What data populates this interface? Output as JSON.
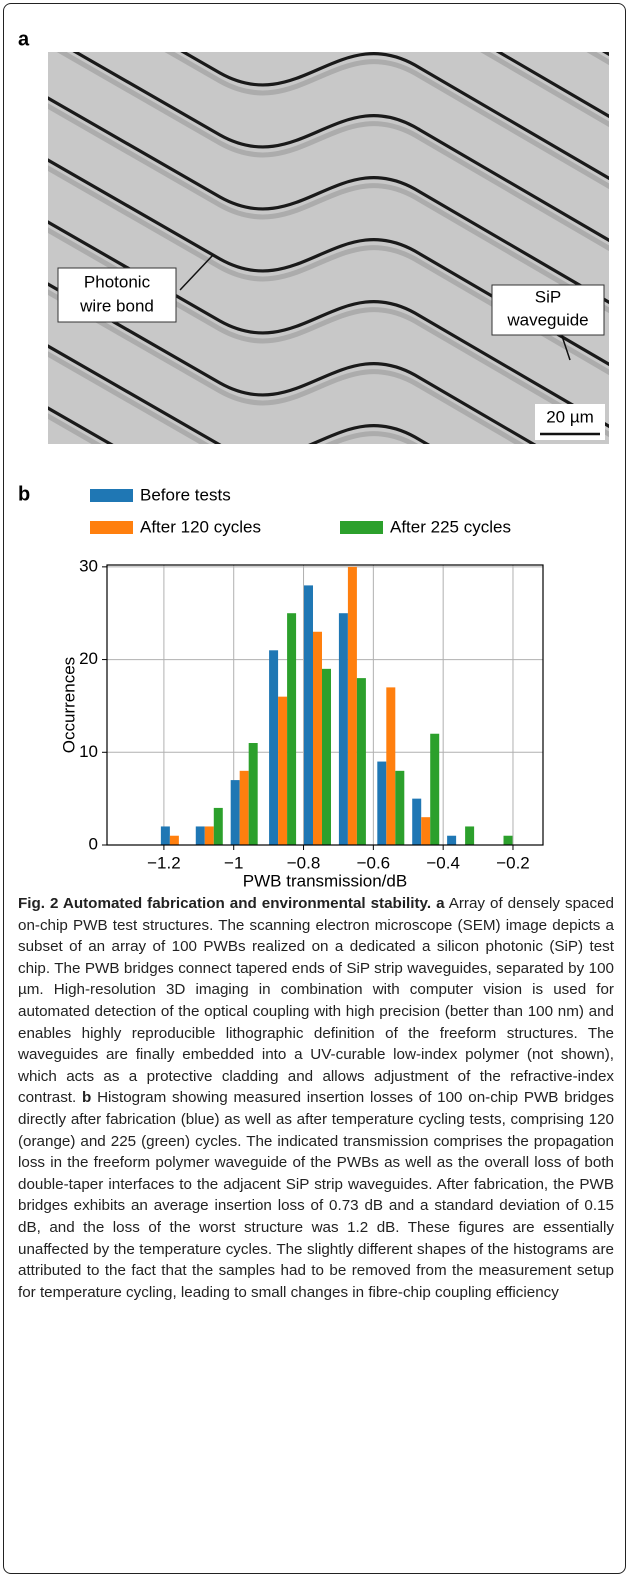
{
  "panel_a": {
    "label": "a",
    "annotations": [
      {
        "lines": [
          "Photonic",
          "wire bond"
        ]
      },
      {
        "lines": [
          "SiP",
          "waveguide"
        ]
      }
    ],
    "scale_bar": "20 µm"
  },
  "panel_b": {
    "label": "b"
  },
  "chart_data": {
    "type": "grouped-histogram",
    "xlabel": "PWB transmission/dB",
    "ylabel": "Occurrences",
    "x": [
      -1.17,
      -1.07,
      -0.97,
      -0.86,
      -0.76,
      -0.66,
      -0.55,
      -0.45,
      -0.35,
      -0.24
    ],
    "series": [
      {
        "name": "Before tests",
        "color": "#1f77b4",
        "values": [
          2,
          2,
          7,
          21,
          28,
          25,
          9,
          5,
          1,
          0
        ]
      },
      {
        "name": "After 120 cycles",
        "color": "#ff7f0e",
        "values": [
          1,
          2,
          8,
          16,
          23,
          30,
          17,
          3,
          0,
          0
        ]
      },
      {
        "name": "After 225 cycles",
        "color": "#2ca02c",
        "values": [
          0,
          4,
          11,
          25,
          19,
          18,
          8,
          12,
          2,
          1
        ]
      }
    ],
    "xlim": [
      -1.363,
      -0.114
    ],
    "xticks": [
      -1.2,
      -1.0,
      -0.8,
      -0.6,
      -0.4,
      -0.2
    ],
    "ylim": [
      0,
      30.2
    ],
    "yticks": [
      0,
      10,
      20,
      30
    ],
    "grid": true
  },
  "caption": {
    "title": "Fig. 2 Automated fabrication and environmental stability.",
    "parts": [
      {
        "label": "a",
        "text": "Array of densely spaced on-chip PWB test structures. The scanning electron microscope (SEM) image depicts a subset of an array of 100 PWBs realized on a dedicated a silicon photonic (SiP) test chip. The PWB bridges connect tapered ends of SiP strip waveguides, separated by 100 µm. High-resolution 3D imaging in combination with computer vision is used for automated detection of the optical coupling with high precision (better than 100 nm) and enables highly reproducible lithographic definition of the freeform structures. The waveguides are finally embedded into a UV-curable low-index polymer (not shown), which acts as a protective cladding and allows adjustment of the refractive-index contrast."
      },
      {
        "label": "b",
        "text": "Histogram showing measured insertion losses of 100 on-chip PWB bridges directly after fabrication (blue) as well as after temperature cycling tests, comprising 120 (orange) and 225 (green) cycles. The indicated transmission comprises the propagation loss in the freeform polymer waveguide of the PWBs as well as the overall loss of both double-taper interfaces to the adjacent SiP strip waveguides. After fabrication, the PWB bridges exhibits an average insertion loss of 0.73 dB and a standard deviation of 0.15 dB, and the loss of the worst structure was 1.2 dB. These figures are essentially unaffected by the temperature cycles. The slightly different shapes of the histograms are attributed to the fact that the samples had to be removed from the measurement setup for temperature cycling, leading to small changes in fibre-chip coupling efficiency"
      }
    ]
  }
}
